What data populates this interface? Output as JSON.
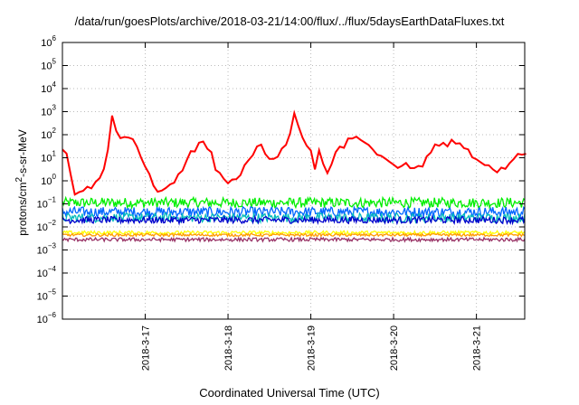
{
  "chart_data": {
    "type": "line",
    "title": "/data/run/goesPlots/archive/2018-03-21/14:00/flux/../flux/5daysEarthDataFluxes.txt",
    "xlabel": "Coordinated Universal Time (UTC)",
    "ylabel": "protons/cm2-s-sr-MeV",
    "y_scale": "log",
    "ylim": [
      1e-06,
      1000000.0
    ],
    "y_tick_exponents": [
      6,
      5,
      4,
      3,
      2,
      1,
      0,
      -1,
      -2,
      -3,
      -4,
      -5,
      -6
    ],
    "y_tick_base": "10",
    "xlim": [
      "2018-03-16 00:00",
      "2018-03-21 14:00"
    ],
    "x_ticks": [
      "2018-3-17",
      "2018-3-18",
      "2018-3-19",
      "2018-3-20",
      "2018-3-21"
    ],
    "grid": true,
    "legend": "none",
    "series": [
      {
        "color": "#ff0000",
        "x_days": [
          0.0,
          0.05,
          0.1,
          0.15,
          0.2,
          0.25,
          0.3,
          0.35,
          0.4,
          0.45,
          0.5,
          0.55,
          0.6,
          0.65,
          0.7,
          0.75,
          0.8,
          0.85,
          0.9,
          0.95,
          1.0,
          1.05,
          1.1,
          1.15,
          1.2,
          1.25,
          1.3,
          1.35,
          1.4,
          1.45,
          1.5,
          1.55,
          1.6,
          1.65,
          1.7,
          1.75,
          1.8,
          1.85,
          1.9,
          1.95,
          2.0,
          2.05,
          2.1,
          2.15,
          2.2,
          2.25,
          2.3,
          2.35,
          2.4,
          2.45,
          2.5,
          2.55,
          2.6,
          2.65,
          2.7,
          2.75,
          2.8,
          2.85,
          2.9,
          2.95,
          3.0,
          3.05,
          3.1,
          3.15,
          3.2,
          3.25,
          3.3,
          3.35,
          3.4,
          3.45,
          3.5,
          3.55,
          3.6,
          3.65,
          3.7,
          3.75,
          3.8,
          3.85,
          3.9,
          3.95,
          4.0,
          4.05,
          4.1,
          4.15,
          4.2,
          4.25,
          4.3,
          4.35,
          4.4,
          4.45,
          4.5,
          4.55,
          4.6,
          4.65,
          4.7,
          4.75,
          4.8,
          4.85,
          4.9,
          4.95,
          5.0,
          5.05,
          5.1,
          5.15,
          5.2,
          5.25,
          5.3,
          5.35,
          5.4,
          5.45,
          5.5,
          5.55,
          5.6
        ],
        "values_log10": [
          1.4,
          1.2,
          0.2,
          -0.6,
          -0.5,
          -0.4,
          -0.2,
          -0.3,
          -0.1,
          0.1,
          0.6,
          1.3,
          2.9,
          2.2,
          1.8,
          1.9,
          1.8,
          1.8,
          1.4,
          1.0,
          0.7,
          0.3,
          -0.2,
          -0.5,
          -0.4,
          -0.3,
          -0.2,
          -0.1,
          0.2,
          0.4,
          0.9,
          1.2,
          1.3,
          1.6,
          1.7,
          1.4,
          1.2,
          0.5,
          0.3,
          0.0,
          -0.1,
          0.0,
          0.1,
          0.2,
          0.6,
          0.9,
          1.2,
          1.5,
          1.6,
          1.2,
          1.0,
          1.0,
          1.1,
          1.4,
          1.6,
          2.1,
          2.9,
          2.3,
          1.8,
          1.5,
          1.3,
          0.5,
          1.4,
          0.8,
          0.3,
          0.7,
          1.2,
          1.5,
          1.4,
          1.8,
          1.9,
          2.0,
          1.7,
          1.6,
          1.5,
          1.4,
          1.2,
          1.0,
          0.9,
          0.8,
          0.7,
          0.6,
          0.6,
          0.7,
          0.6,
          0.6,
          0.6,
          0.7,
          1.0,
          1.3,
          1.5,
          1.6,
          1.6,
          1.5,
          1.7,
          1.7,
          1.6,
          1.5,
          1.3,
          1.1,
          1.0,
          0.8,
          0.7,
          0.6,
          0.5,
          0.4,
          0.5,
          0.6,
          0.8,
          1.0,
          1.1,
          1.2,
          1.2
        ]
      },
      {
        "color": "#00ee00",
        "level_log10": -0.95,
        "noise": 0.22
      },
      {
        "color": "#0066ff",
        "level_log10": -1.35,
        "noise": 0.22
      },
      {
        "color": "#00bbbb",
        "level_log10": -1.6,
        "noise": 0.2
      },
      {
        "color": "#0000cc",
        "level_log10": -1.7,
        "noise": 0.15
      },
      {
        "color": "#ffff00",
        "level_log10": -2.25,
        "noise": 0.08
      },
      {
        "color": "#ff9900",
        "level_log10": -2.35,
        "noise": 0.06
      },
      {
        "color": "#993366",
        "level_log10": -2.55,
        "noise": 0.08
      }
    ]
  }
}
